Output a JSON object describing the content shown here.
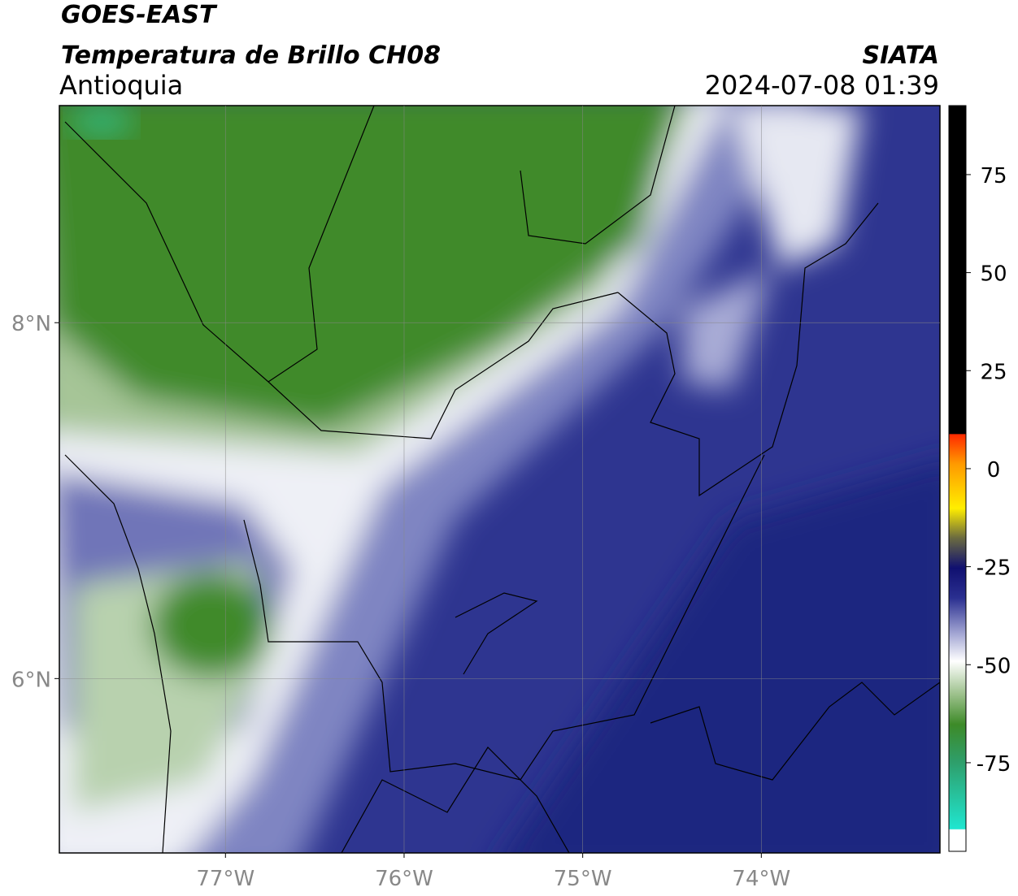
{
  "header": {
    "title": "GOES-EAST",
    "subtitle": "Temperatura de Brillo CH08",
    "region": "Antioquia",
    "source": "SIATA",
    "datetime": "2024-07-08 01:39"
  },
  "map": {
    "xlim": [
      -77.93,
      -73.0
    ],
    "ylim": [
      5.02,
      9.22
    ],
    "xticks": [
      {
        "value": -77,
        "label": "77°W"
      },
      {
        "value": -76,
        "label": "76°W"
      },
      {
        "value": -75,
        "label": "75°W"
      },
      {
        "value": -74,
        "label": "74°W"
      }
    ],
    "yticks": [
      {
        "value": 8,
        "label": "8°N"
      },
      {
        "value": 6,
        "label": "6°N"
      }
    ],
    "grid": true
  },
  "colorbar": {
    "lim": [
      -97.6,
      92.6
    ],
    "ticks": [
      75,
      50,
      25,
      0,
      -25,
      -50,
      -75
    ]
  }
}
